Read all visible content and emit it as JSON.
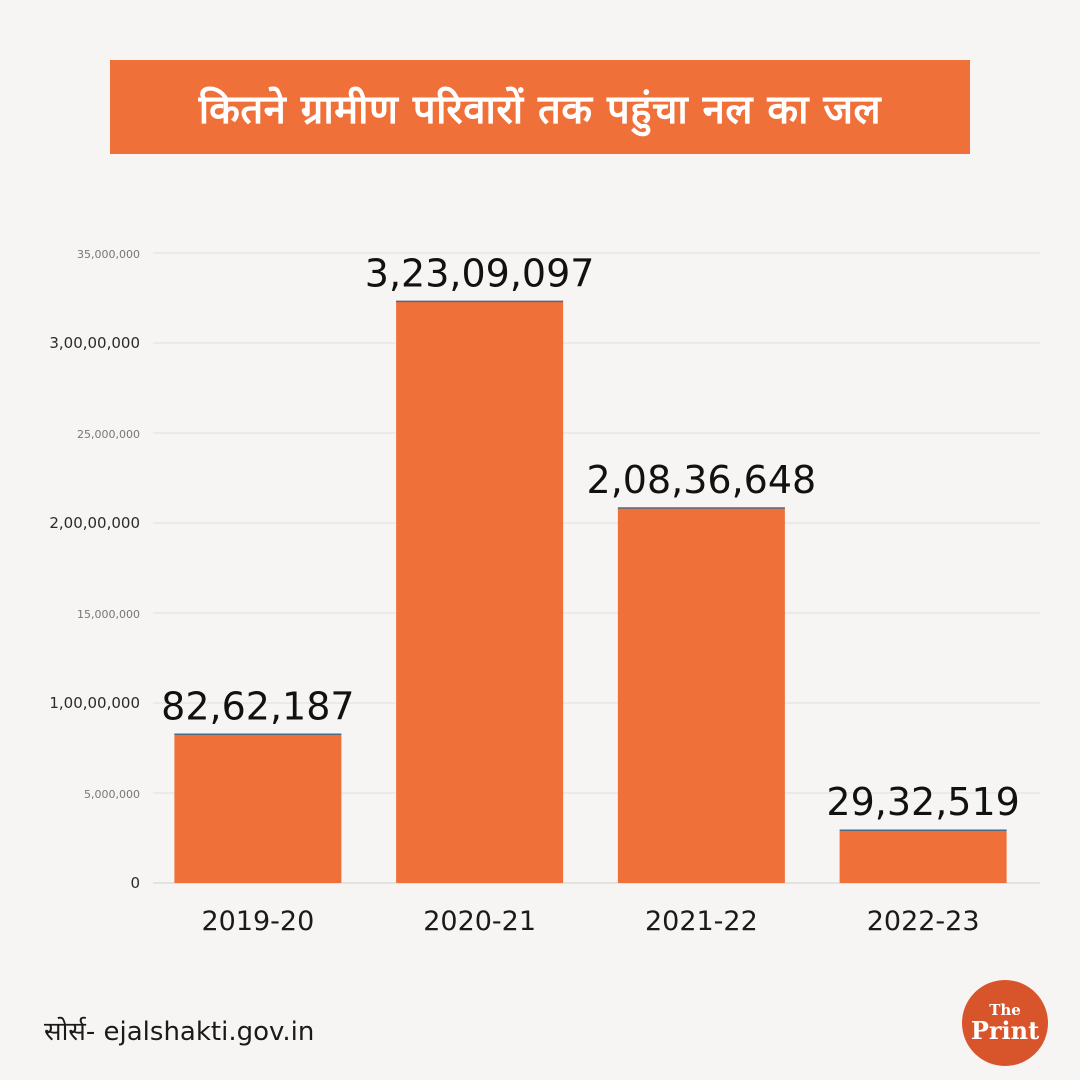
{
  "title": "कितने ग्रामीण परिवारों तक पहुंचा नल का जल",
  "source": "सोर्स- ejalshakti.gov.in",
  "logo": {
    "line1": "The",
    "line2": "Print"
  },
  "colors": {
    "bar": "#f0703a",
    "title_bg": "#f0703a",
    "logo_bg": "#d8542a"
  },
  "chart_data": {
    "type": "bar",
    "categories": [
      "2019-20",
      "2020-21",
      "2021-22",
      "2022-23"
    ],
    "values": [
      8262187,
      32309097,
      20836648,
      2932519
    ],
    "value_labels": [
      "82,62,187",
      "3,23,09,097",
      "2,08,36,648",
      "29,32,519"
    ],
    "ylim": [
      0,
      35000000
    ],
    "yticks": [
      0,
      5000000,
      10000000,
      15000000,
      20000000,
      25000000,
      30000000,
      35000000
    ],
    "ytick_labels": [
      "0",
      "5,000,000",
      "1,00,00,000",
      "15,000,000",
      "2,00,00,000",
      "25,000,000",
      "3,00,00,000",
      "35,000,000"
    ],
    "grid": true
  }
}
